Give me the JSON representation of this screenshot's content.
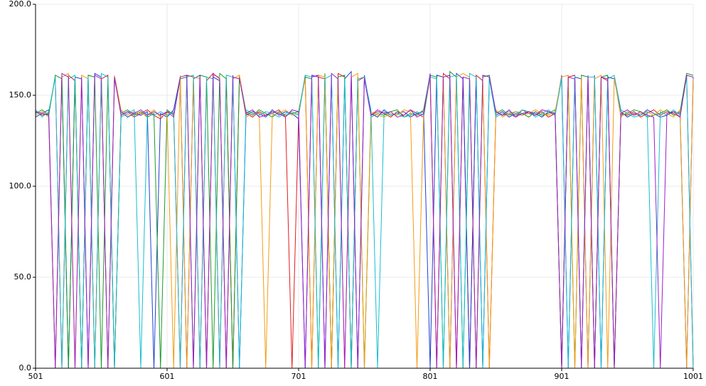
{
  "chart_data": {
    "type": "line",
    "x": [
      501,
      506,
      511,
      516,
      521,
      526,
      531,
      536,
      541,
      546,
      551,
      556,
      561,
      566,
      571,
      576,
      581,
      586,
      591,
      596,
      601,
      606,
      611,
      616,
      621,
      626,
      631,
      636,
      641,
      646,
      651,
      656,
      661,
      666,
      671,
      676,
      681,
      686,
      691,
      696,
      701,
      706,
      711,
      716,
      721,
      726,
      731,
      736,
      741,
      746,
      751,
      756,
      761,
      766,
      771,
      776,
      781,
      786,
      791,
      796,
      801,
      806,
      811,
      816,
      821,
      826,
      831,
      836,
      841,
      846,
      851,
      856,
      861,
      866,
      871,
      876,
      881,
      886,
      891,
      896,
      901,
      906,
      911,
      916,
      921,
      926,
      931,
      936,
      941,
      946,
      951,
      956,
      961,
      966,
      971,
      976,
      981,
      986,
      991,
      996,
      1001
    ],
    "series": [
      {
        "color": "#e41a1c",
        "values": [
          141,
          139,
          140,
          160,
          0,
          161,
          158,
          0,
          160,
          0,
          159,
          161,
          0,
          139,
          141,
          138,
          140,
          142,
          139,
          137,
          141,
          140,
          0,
          161,
          160,
          0,
          158,
          162,
          0,
          160,
          0,
          161,
          140,
          138,
          141,
          139,
          140,
          142,
          138,
          0,
          139,
          161,
          0,
          160,
          159,
          0,
          162,
          160,
          0,
          158,
          160,
          139,
          141,
          140,
          138,
          141,
          139,
          142,
          140,
          138,
          160,
          0,
          162,
          159,
          0,
          160,
          0,
          161,
          158,
          0,
          141,
          139,
          140,
          138,
          142,
          140,
          139,
          141,
          138,
          140,
          0,
          160,
          161,
          0,
          159,
          0,
          160,
          158,
          0,
          140,
          139,
          141,
          138,
          140,
          142,
          139,
          141,
          140,
          138,
          161,
          0
        ]
      },
      {
        "color": "#1f3fd6",
        "values": [
          138,
          140,
          142,
          0,
          161,
          0,
          160,
          159,
          0,
          162,
          160,
          0,
          159,
          141,
          138,
          140,
          139,
          141,
          0,
          140,
          138,
          142,
          160,
          0,
          159,
          161,
          0,
          160,
          158,
          0,
          161,
          0,
          139,
          141,
          140,
          138,
          142,
          139,
          141,
          140,
          137,
          0,
          160,
          161,
          0,
          160,
          0,
          159,
          163,
          0,
          161,
          140,
          138,
          142,
          139,
          140,
          141,
          138,
          140,
          141,
          0,
          161,
          160,
          0,
          162,
          159,
          0,
          160,
          0,
          160,
          139,
          141,
          138,
          140,
          139,
          141,
          140,
          138,
          141,
          139,
          161,
          0,
          160,
          159,
          0,
          161,
          0,
          160,
          159,
          141,
          138,
          140,
          139,
          142,
          140,
          138,
          139,
          141,
          140,
          0,
          160
        ]
      },
      {
        "color": "#1a9a2a",
        "values": [
          140,
          142,
          139,
          161,
          159,
          0,
          160,
          0,
          161,
          160,
          0,
          159,
          0,
          140,
          142,
          139,
          141,
          138,
          140,
          0,
          142,
          139,
          159,
          160,
          0,
          161,
          160,
          0,
          162,
          159,
          0,
          160,
          141,
          139,
          142,
          140,
          138,
          141,
          139,
          140,
          141,
          160,
          159,
          0,
          162,
          0,
          160,
          161,
          0,
          160,
          0,
          138,
          140,
          139,
          141,
          142,
          138,
          140,
          139,
          142,
          161,
          160,
          0,
          163,
          160,
          0,
          159,
          0,
          160,
          161,
          140,
          142,
          139,
          141,
          140,
          138,
          141,
          139,
          140,
          142,
          0,
          159,
          0,
          161,
          160,
          0,
          160,
          161,
          0,
          139,
          140,
          142,
          141,
          138,
          139,
          140,
          142,
          139,
          141,
          162,
          161
        ]
      },
      {
        "color": "#f39c12",
        "values": [
          139,
          141,
          138,
          0,
          160,
          162,
          0,
          161,
          159,
          0,
          160,
          0,
          161,
          142,
          139,
          141,
          140,
          139,
          142,
          138,
          140,
          0,
          161,
          0,
          160,
          159,
          0,
          161,
          160,
          0,
          159,
          161,
          138,
          140,
          141,
          0,
          139,
          140,
          142,
          139,
          140,
          159,
          0,
          161,
          160,
          0,
          159,
          0,
          160,
          162,
          0,
          141,
          139,
          138,
          140,
          139,
          142,
          141,
          0,
          140,
          159,
          0,
          161,
          0,
          160,
          162,
          160,
          0,
          159,
          0,
          142,
          138,
          140,
          141,
          139,
          140,
          142,
          140,
          139,
          141,
          160,
          161,
          0,
          160,
          0,
          159,
          161,
          0,
          160,
          138,
          141,
          139,
          140,
          141,
          139,
          142,
          140,
          138,
          142,
          0,
          159
        ]
      },
      {
        "color": "#17becf",
        "values": [
          142,
          138,
          141,
          160,
          0,
          159,
          161,
          0,
          160,
          0,
          162,
          160,
          0,
          138,
          140,
          142,
          0,
          140,
          139,
          141,
          139,
          141,
          0,
          160,
          161,
          0,
          160,
          159,
          0,
          161,
          160,
          0,
          142,
          140,
          139,
          141,
          140,
          138,
          140,
          141,
          139,
          161,
          160,
          0,
          159,
          161,
          0,
          160,
          0,
          159,
          160,
          142,
          0,
          141,
          139,
          140,
          138,
          139,
          141,
          139,
          160,
          159,
          0,
          160,
          161,
          0,
          162,
          160,
          0,
          159,
          138,
          140,
          141,
          139,
          142,
          141,
          138,
          140,
          142,
          139,
          159,
          0,
          161,
          0,
          160,
          160,
          0,
          159,
          161,
          142,
          140,
          138,
          139,
          141,
          0,
          141,
          139,
          142,
          139,
          160,
          0
        ]
      },
      {
        "color": "#9b1fc9",
        "values": [
          141,
          140,
          139,
          0,
          162,
          160,
          0,
          160,
          0,
          161,
          159,
          0,
          160,
          139,
          141,
          140,
          142,
          139,
          141,
          139,
          141,
          138,
          160,
          161,
          0,
          160,
          0,
          162,
          159,
          0,
          160,
          159,
          140,
          142,
          138,
          139,
          141,
          140,
          138,
          142,
          141,
          0,
          161,
          160,
          0,
          162,
          159,
          0,
          161,
          0,
          159,
          139,
          142,
          140,
          141,
          138,
          139,
          142,
          138,
          140,
          162,
          0,
          160,
          161,
          0,
          160,
          159,
          0,
          161,
          160,
          141,
          139,
          142,
          138,
          140,
          141,
          139,
          142,
          141,
          140,
          0,
          160,
          159,
          0,
          161,
          0,
          160,
          159,
          0,
          140,
          142,
          139,
          141,
          139,
          138,
          0,
          140,
          141,
          138,
          161,
          160
        ]
      }
    ],
    "xlim": [
      501,
      1001
    ],
    "xticks": [
      501,
      601,
      701,
      801,
      901,
      1001
    ],
    "ylim": [
      0,
      200
    ],
    "yticks": [
      {
        "value": 0,
        "label": "0.0"
      },
      {
        "value": 50,
        "label": "50.0"
      },
      {
        "value": 100,
        "label": "100.0"
      },
      {
        "value": 150,
        "label": "150.0"
      },
      {
        "value": 200,
        "label": "200.0"
      }
    ],
    "grid": true
  }
}
